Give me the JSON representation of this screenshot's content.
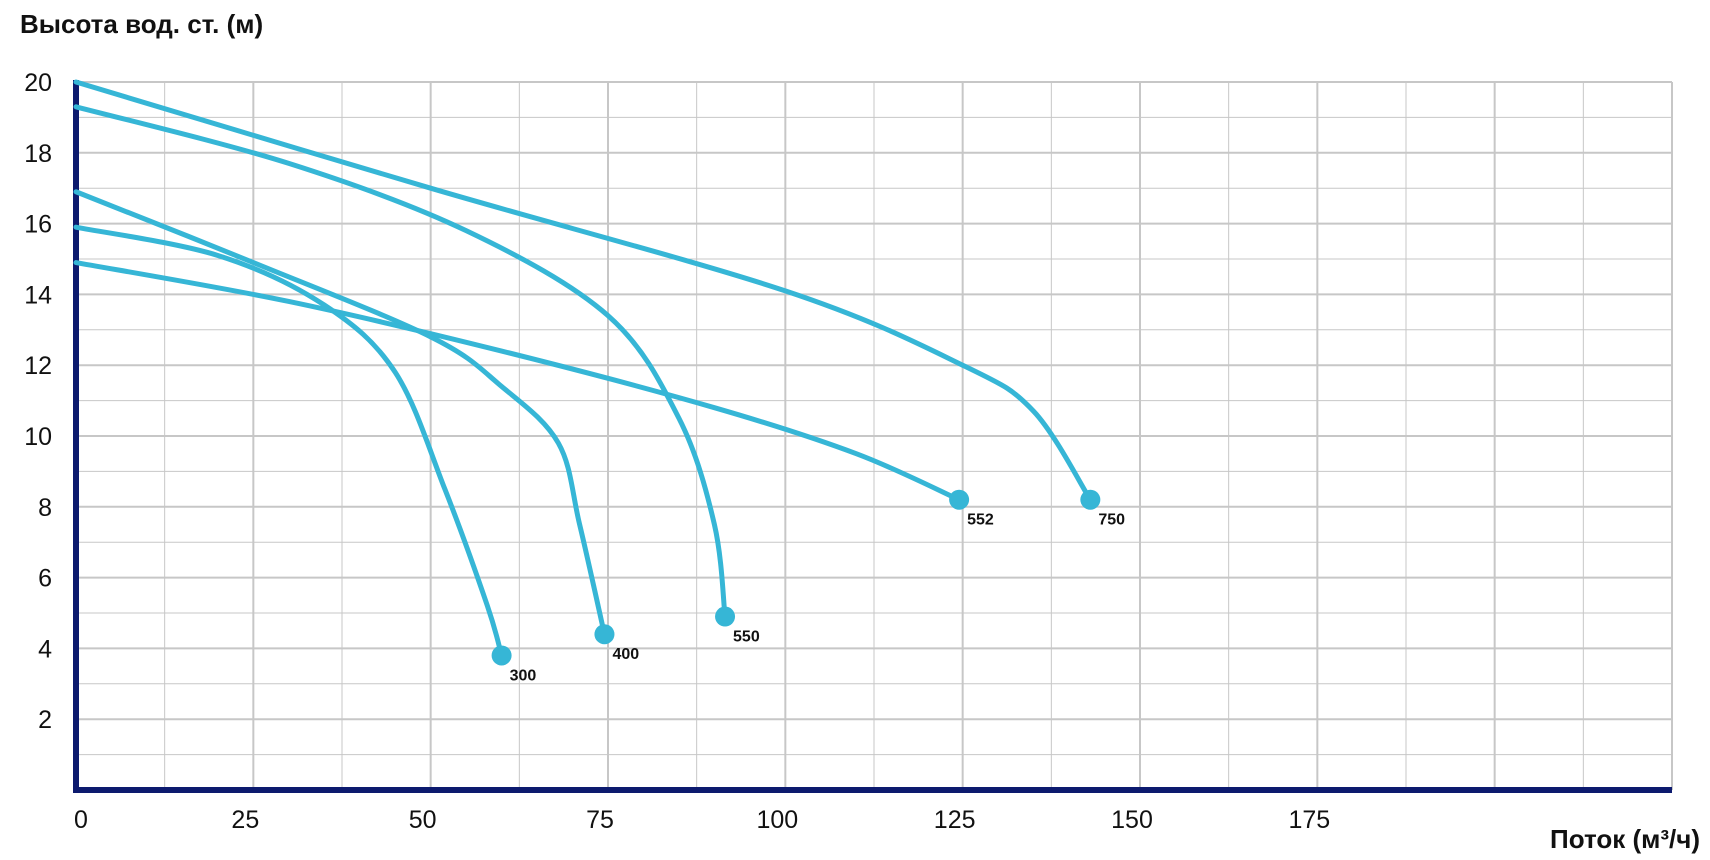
{
  "chart_data": {
    "type": "line",
    "title": "",
    "ylabel": "Высота вод. ст. (м)",
    "xlabel": "Поток (м³/ч)",
    "xlim": [
      0,
      225
    ],
    "ylim": [
      0,
      20
    ],
    "x_ticks": [
      0,
      25,
      50,
      75,
      100,
      125,
      150,
      175
    ],
    "y_ticks": [
      2,
      4,
      6,
      8,
      10,
      12,
      14,
      16,
      18,
      20
    ],
    "grid": true,
    "colors": {
      "series": "#36b6d6",
      "axis": "#0c1a6e",
      "grid": "#c7c7c7"
    },
    "series": [
      {
        "name": "300",
        "points": [
          [
            0,
            15.9
          ],
          [
            20,
            15.1
          ],
          [
            35,
            13.7
          ],
          [
            45,
            11.8
          ],
          [
            52,
            8.5
          ],
          [
            58,
            5.2
          ],
          [
            60,
            3.8
          ]
        ],
        "end": [
          60,
          3.8
        ]
      },
      {
        "name": "400",
        "points": [
          [
            0,
            16.9
          ],
          [
            25,
            14.9
          ],
          [
            50,
            12.8
          ],
          [
            60,
            11.4
          ],
          [
            68,
            9.8
          ],
          [
            71,
            7.5
          ],
          [
            74.5,
            4.4
          ]
        ],
        "end": [
          74.5,
          4.4
        ]
      },
      {
        "name": "550",
        "points": [
          [
            0,
            19.3
          ],
          [
            30,
            17.7
          ],
          [
            55,
            15.8
          ],
          [
            75,
            13.4
          ],
          [
            85,
            10.5
          ],
          [
            90,
            7.5
          ],
          [
            91.5,
            4.9
          ]
        ],
        "end": [
          91.5,
          4.9
        ]
      },
      {
        "name": "552",
        "points": [
          [
            0,
            14.9
          ],
          [
            30,
            13.8
          ],
          [
            60,
            12.4
          ],
          [
            90,
            10.8
          ],
          [
            110,
            9.5
          ],
          [
            124.5,
            8.2
          ]
        ],
        "end": [
          124.5,
          8.2
        ]
      },
      {
        "name": "750",
        "points": [
          [
            0,
            20.0
          ],
          [
            50,
            17.0
          ],
          [
            100,
            14.1
          ],
          [
            125,
            12.0
          ],
          [
            135,
            10.7
          ],
          [
            143,
            8.2
          ]
        ],
        "end": [
          143,
          8.2
        ]
      }
    ]
  }
}
